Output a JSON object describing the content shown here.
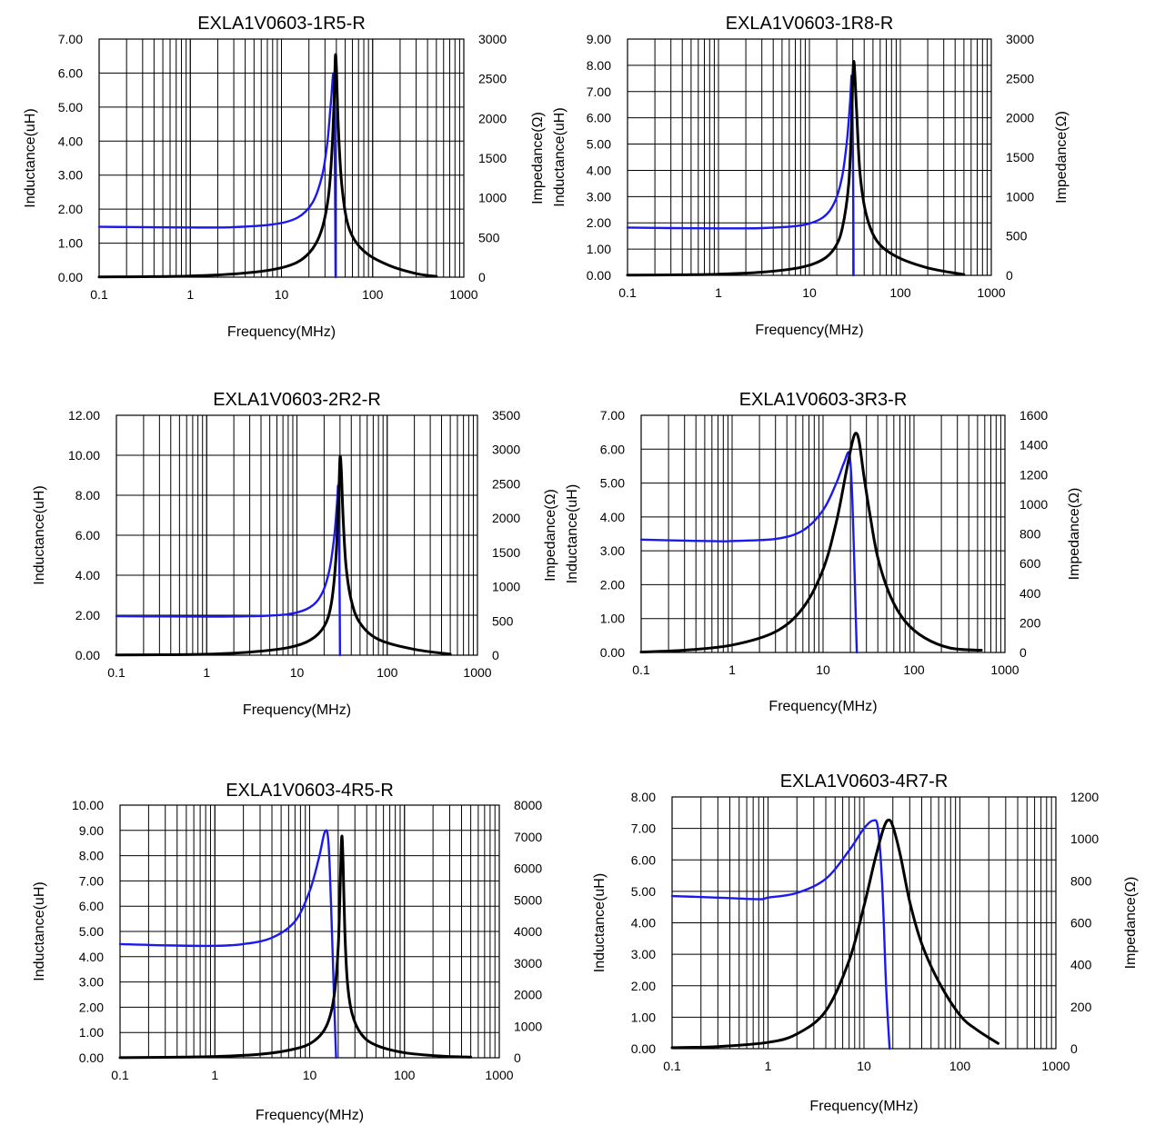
{
  "colors": {
    "inductance": "#1a1af0",
    "impedance": "#000000",
    "grid": "#000000"
  },
  "chart_data": [
    {
      "type": "line",
      "title": "EXLA1V0603-1R5-R",
      "xlabel": "Frequency(MHz)",
      "ylabel_left": "Inductance(uH)",
      "ylabel_right": "Impedance(Ω)",
      "x_scale": "log",
      "xlim": [
        0.1,
        1000
      ],
      "x_ticks": [
        "0.1",
        "1",
        "10",
        "100",
        "1000"
      ],
      "ylim_left": [
        0,
        7
      ],
      "y_ticks_left": [
        "0.00",
        "1.00",
        "2.00",
        "3.00",
        "4.00",
        "5.00",
        "6.00",
        "7.00"
      ],
      "ylim_right": [
        0,
        3000
      ],
      "y_ticks_right": [
        "0",
        "500",
        "1000",
        "1500",
        "2000",
        "2500",
        "3000"
      ],
      "series": [
        {
          "name": "Inductance",
          "axis": "left",
          "color": "#1a1af0",
          "x": [
            0.1,
            0.3,
            1,
            3,
            8,
            15,
            22,
            28,
            32,
            35,
            37.5,
            38.6,
            39.2
          ],
          "y": [
            1.48,
            1.47,
            1.46,
            1.47,
            1.55,
            1.75,
            2.2,
            3.0,
            4.0,
            5.2,
            5.9,
            3.0,
            0
          ]
        },
        {
          "name": "Impedance",
          "axis": "right",
          "color": "#000000",
          "x": [
            0.1,
            0.3,
            1,
            3,
            8,
            15,
            22,
            28,
            33,
            36,
            38,
            39,
            40,
            42,
            46,
            55,
            80,
            150,
            300,
            500
          ],
          "y": [
            3,
            6,
            15,
            40,
            95,
            190,
            360,
            620,
            1050,
            1650,
            2300,
            2780,
            2650,
            1900,
            1150,
            620,
            330,
            150,
            45,
            10
          ]
        }
      ]
    },
    {
      "type": "line",
      "title": "EXLA1V0603-1R8-R",
      "xlabel": "Frequency(MHz)",
      "ylabel_left": "Inductance(uH)",
      "ylabel_right": "Impedance(Ω)",
      "x_scale": "log",
      "xlim": [
        0.1,
        1000
      ],
      "x_ticks": [
        "0.1",
        "1",
        "10",
        "100",
        "1000"
      ],
      "ylim_left": [
        0,
        9
      ],
      "y_ticks_left": [
        "0.00",
        "1.00",
        "2.00",
        "3.00",
        "4.00",
        "5.00",
        "6.00",
        "7.00",
        "8.00",
        "9.00"
      ],
      "ylim_right": [
        0,
        3000
      ],
      "y_ticks_right": [
        "0",
        "500",
        "1000",
        "1500",
        "2000",
        "2500",
        "3000"
      ],
      "series": [
        {
          "name": "Inductance",
          "axis": "left",
          "color": "#1a1af0",
          "x": [
            0.1,
            0.3,
            1,
            3,
            8,
            14,
            19,
            23,
            26,
            28,
            29.3,
            30.2,
            30.6
          ],
          "y": [
            1.82,
            1.8,
            1.79,
            1.8,
            1.9,
            2.2,
            2.8,
            3.8,
            5.2,
            6.6,
            7.5,
            4.0,
            0
          ]
        },
        {
          "name": "Impedance",
          "axis": "right",
          "color": "#000000",
          "x": [
            0.1,
            0.3,
            1,
            3,
            8,
            14,
            19,
            23,
            27,
            29,
            30,
            31,
            33,
            36,
            42,
            55,
            90,
            200,
            500
          ],
          "y": [
            3,
            6,
            15,
            40,
            100,
            200,
            350,
            600,
            1150,
            1900,
            2500,
            2700,
            2100,
            1300,
            780,
            440,
            240,
            95,
            10
          ]
        }
      ]
    },
    {
      "type": "line",
      "title": "EXLA1V0603-2R2-R",
      "xlabel": "Frequency(MHz)",
      "ylabel_left": "Inductance(uH)",
      "ylabel_right": "Impedance(Ω)",
      "x_scale": "log",
      "xlim": [
        0.1,
        1000
      ],
      "x_ticks": [
        "0.1",
        "1",
        "10",
        "100",
        "1000"
      ],
      "ylim_left": [
        0,
        12
      ],
      "y_ticks_left": [
        "0.00",
        "2.00",
        "4.00",
        "6.00",
        "8.00",
        "10.00",
        "12.00"
      ],
      "ylim_right": [
        0,
        3500
      ],
      "y_ticks_right": [
        "0",
        "500",
        "1000",
        "1500",
        "2000",
        "2500",
        "3000",
        "3500"
      ],
      "series": [
        {
          "name": "Inductance",
          "axis": "left",
          "color": "#1a1af0",
          "x": [
            0.1,
            0.3,
            1,
            3,
            8,
            14,
            19,
            23,
            26,
            27.8,
            28.8,
            29.6,
            30
          ],
          "y": [
            1.95,
            1.94,
            1.93,
            1.95,
            2.05,
            2.4,
            3.1,
            4.3,
            6.0,
            7.6,
            8.3,
            4.0,
            0
          ]
        },
        {
          "name": "Impedance",
          "axis": "right",
          "color": "#000000",
          "x": [
            0.1,
            0.3,
            1,
            3,
            8,
            14,
            20,
            24,
            27,
            29,
            30,
            31,
            32.5,
            35,
            40,
            50,
            80,
            200,
            500
          ],
          "y": [
            3,
            6,
            15,
            45,
            110,
            220,
            420,
            750,
            1400,
            2300,
            2880,
            2700,
            2000,
            1300,
            800,
            470,
            230,
            85,
            15
          ]
        }
      ]
    },
    {
      "type": "line",
      "title": "EXLA1V0603-3R3-R",
      "xlabel": "Frequency(MHz)",
      "ylabel_left": "Inductance(uH)",
      "ylabel_right": "Impedance(Ω)",
      "x_scale": "log",
      "xlim": [
        0.1,
        1000
      ],
      "x_ticks": [
        "0.1",
        "1",
        "10",
        "100",
        "1000"
      ],
      "ylim_left": [
        0,
        7
      ],
      "y_ticks_left": [
        "0.00",
        "1.00",
        "2.00",
        "3.00",
        "4.00",
        "5.00",
        "6.00",
        "7.00"
      ],
      "ylim_right": [
        0,
        1600
      ],
      "y_ticks_right": [
        "0",
        "200",
        "400",
        "600",
        "800",
        "1000",
        "1200",
        "1400",
        "1600"
      ],
      "series": [
        {
          "name": "Inductance",
          "axis": "left",
          "color": "#1a1af0",
          "x": [
            0.1,
            0.3,
            0.8,
            1,
            3,
            6,
            10,
            14,
            17,
            19.5,
            21,
            22.5,
            23.5
          ],
          "y": [
            3.33,
            3.3,
            3.28,
            3.29,
            3.35,
            3.6,
            4.2,
            5.0,
            5.6,
            5.85,
            4.5,
            1.8,
            0
          ]
        },
        {
          "name": "Impedance",
          "axis": "right",
          "color": "#000000",
          "x": [
            0.1,
            0.3,
            1,
            3,
            6,
            10,
            14,
            18,
            21,
            23,
            25,
            28,
            33,
            40,
            55,
            80,
            130,
            250,
            550
          ],
          "y": [
            3,
            15,
            50,
            140,
            300,
            560,
            880,
            1220,
            1420,
            1480,
            1420,
            1200,
            920,
            640,
            380,
            210,
            100,
            30,
            15
          ]
        }
      ]
    },
    {
      "type": "line",
      "title": "EXLA1V0603-4R5-R",
      "xlabel": "Frequency(MHz)",
      "ylabel_left": "Inductance(uH)",
      "ylabel_right": "",
      "x_scale": "log",
      "xlim": [
        0.1,
        1000
      ],
      "x_ticks": [
        "0.1",
        "1",
        "10",
        "100",
        "1000"
      ],
      "ylim_left": [
        0,
        10
      ],
      "y_ticks_left": [
        "0.00",
        "1.00",
        "2.00",
        "3.00",
        "4.00",
        "5.00",
        "6.00",
        "7.00",
        "8.00",
        "9.00",
        "10.00"
      ],
      "ylim_right": [
        0,
        8000
      ],
      "y_ticks_right": [
        "0",
        "1000",
        "2000",
        "3000",
        "4000",
        "5000",
        "6000",
        "7000",
        "8000"
      ],
      "series": [
        {
          "name": "Inductance",
          "axis": "left",
          "color": "#1a1af0",
          "x": [
            0.1,
            0.3,
            1,
            2,
            4,
            7,
            10,
            12.5,
            14.5,
            15.8,
            17,
            18.2,
            19
          ],
          "y": [
            4.5,
            4.45,
            4.43,
            4.5,
            4.75,
            5.4,
            6.6,
            7.9,
            8.95,
            8.5,
            5.5,
            2.0,
            0
          ]
        },
        {
          "name": "Impedance",
          "axis": "right",
          "color": "#000000",
          "x": [
            0.1,
            0.3,
            1,
            3,
            7,
            11,
            15,
            18,
            20,
            21,
            21.8,
            22.5,
            23.5,
            25,
            28,
            35,
            50,
            100,
            250,
            500
          ],
          "y": [
            5,
            15,
            40,
            110,
            280,
            520,
            1000,
            1900,
            3500,
            5500,
            7000,
            6200,
            4000,
            2400,
            1400,
            750,
            400,
            160,
            50,
            20
          ]
        }
      ]
    },
    {
      "type": "line",
      "title": "EXLA1V0603-4R7-R",
      "xlabel": "Frequency(MHz)",
      "ylabel_left": "Inductance(uH)",
      "ylabel_right": "Impedance(Ω)",
      "x_scale": "log",
      "xlim": [
        0.1,
        1000
      ],
      "x_ticks": [
        "0.1",
        "1",
        "10",
        "100",
        "1000"
      ],
      "ylim_left": [
        0,
        8
      ],
      "y_ticks_left": [
        "0.00",
        "1.00",
        "2.00",
        "3.00",
        "4.00",
        "5.00",
        "6.00",
        "7.00",
        "8.00"
      ],
      "ylim_right": [
        0,
        1200
      ],
      "y_ticks_right": [
        "0",
        "200",
        "400",
        "600",
        "800",
        "1000",
        "1200"
      ],
      "series": [
        {
          "name": "Inductance",
          "axis": "left",
          "color": "#1a1af0",
          "x": [
            0.1,
            0.3,
            0.8,
            1,
            2,
            4,
            7,
            10,
            12.5,
            14,
            15.5,
            17,
            18.5
          ],
          "y": [
            4.85,
            4.8,
            4.75,
            4.8,
            4.95,
            5.4,
            6.3,
            7.0,
            7.25,
            7.0,
            5.2,
            2.0,
            0
          ]
        },
        {
          "name": "Impedance",
          "axis": "right",
          "color": "#000000",
          "x": [
            0.1,
            0.3,
            1,
            2,
            4,
            7,
            10,
            13,
            16,
            18,
            20,
            24,
            30,
            40,
            60,
            100,
            150,
            250
          ],
          "y": [
            5,
            10,
            30,
            70,
            180,
            420,
            680,
            900,
            1050,
            1090,
            1060,
            920,
            700,
            500,
            320,
            160,
            90,
            25
          ]
        }
      ]
    }
  ]
}
